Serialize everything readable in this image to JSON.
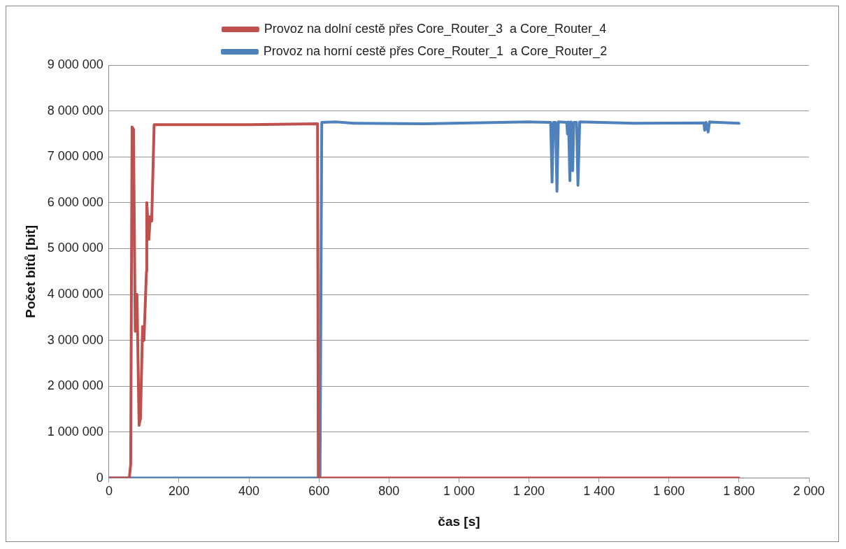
{
  "chart_data": {
    "type": "line",
    "xlabel": "čas [s]",
    "ylabel": "Počet bitů [bit]",
    "xlim": [
      0,
      2000
    ],
    "xticks": [
      0,
      200,
      400,
      600,
      800,
      {
        "value": 1000,
        "label": "1 000"
      },
      {
        "value": 1200,
        "label": "1 200"
      },
      {
        "value": 1400,
        "label": "1 400"
      },
      {
        "value": 1600,
        "label": "1 600"
      },
      {
        "value": 1800,
        "label": "1 800"
      },
      {
        "value": 2000,
        "label": "2 000"
      }
    ],
    "ylim": [
      0,
      9000000
    ],
    "yticks": [
      0,
      {
        "value": 1000000,
        "label": "1 000 000"
      },
      {
        "value": 2000000,
        "label": "2 000 000"
      },
      {
        "value": 3000000,
        "label": "3 000 000"
      },
      {
        "value": 4000000,
        "label": "4 000 000"
      },
      {
        "value": 5000000,
        "label": "5 000 000"
      },
      {
        "value": 6000000,
        "label": "6 000 000"
      },
      {
        "value": 7000000,
        "label": "7 000 000"
      },
      {
        "value": 8000000,
        "label": "8 000 000"
      },
      {
        "value": 9000000,
        "label": "9 000 000"
      }
    ],
    "grid": "y",
    "legend": "top",
    "marker": "none",
    "line_style": "solid",
    "series": [
      {
        "name": "Provoz na dolní cestě přes Core_Router_3  a Core_Router_4",
        "color": "#c0504d",
        "x": [
          0,
          58,
          62,
          66,
          70,
          75,
          80,
          86,
          90,
          96,
          100,
          107,
          108,
          114,
          118,
          122,
          129,
          200,
          400,
          596,
          598,
          1800
        ],
        "values": [
          0,
          0,
          300000,
          7650000,
          7600000,
          3200000,
          4000000,
          1150000,
          1300000,
          3300000,
          3000000,
          4500000,
          6000000,
          5200000,
          5700000,
          5600000,
          7700000,
          7700000,
          7700000,
          7720000,
          0,
          0
        ]
      },
      {
        "name": "Provoz na horní cestě přes Core_Router_1  a Core_Router_2",
        "color": "#4f81bd",
        "x": [
          0,
          603,
          608,
          650,
          700,
          900,
          1200,
          1262,
          1266,
          1270,
          1276,
          1280,
          1284,
          1308,
          1310,
          1313,
          1317,
          1320,
          1325,
          1328,
          1336,
          1340,
          1345,
          1500,
          1700,
          1702,
          1706,
          1712,
          1716,
          1800
        ],
        "values": [
          0,
          0,
          7750000,
          7760000,
          7730000,
          7720000,
          7760000,
          7750000,
          6450000,
          7750000,
          7750000,
          6250000,
          7760000,
          7750000,
          7500000,
          7760000,
          6480000,
          7760000,
          6700000,
          7750000,
          7750000,
          6380000,
          7760000,
          7730000,
          7740000,
          7580000,
          7750000,
          7540000,
          7760000,
          7730000
        ]
      }
    ]
  }
}
